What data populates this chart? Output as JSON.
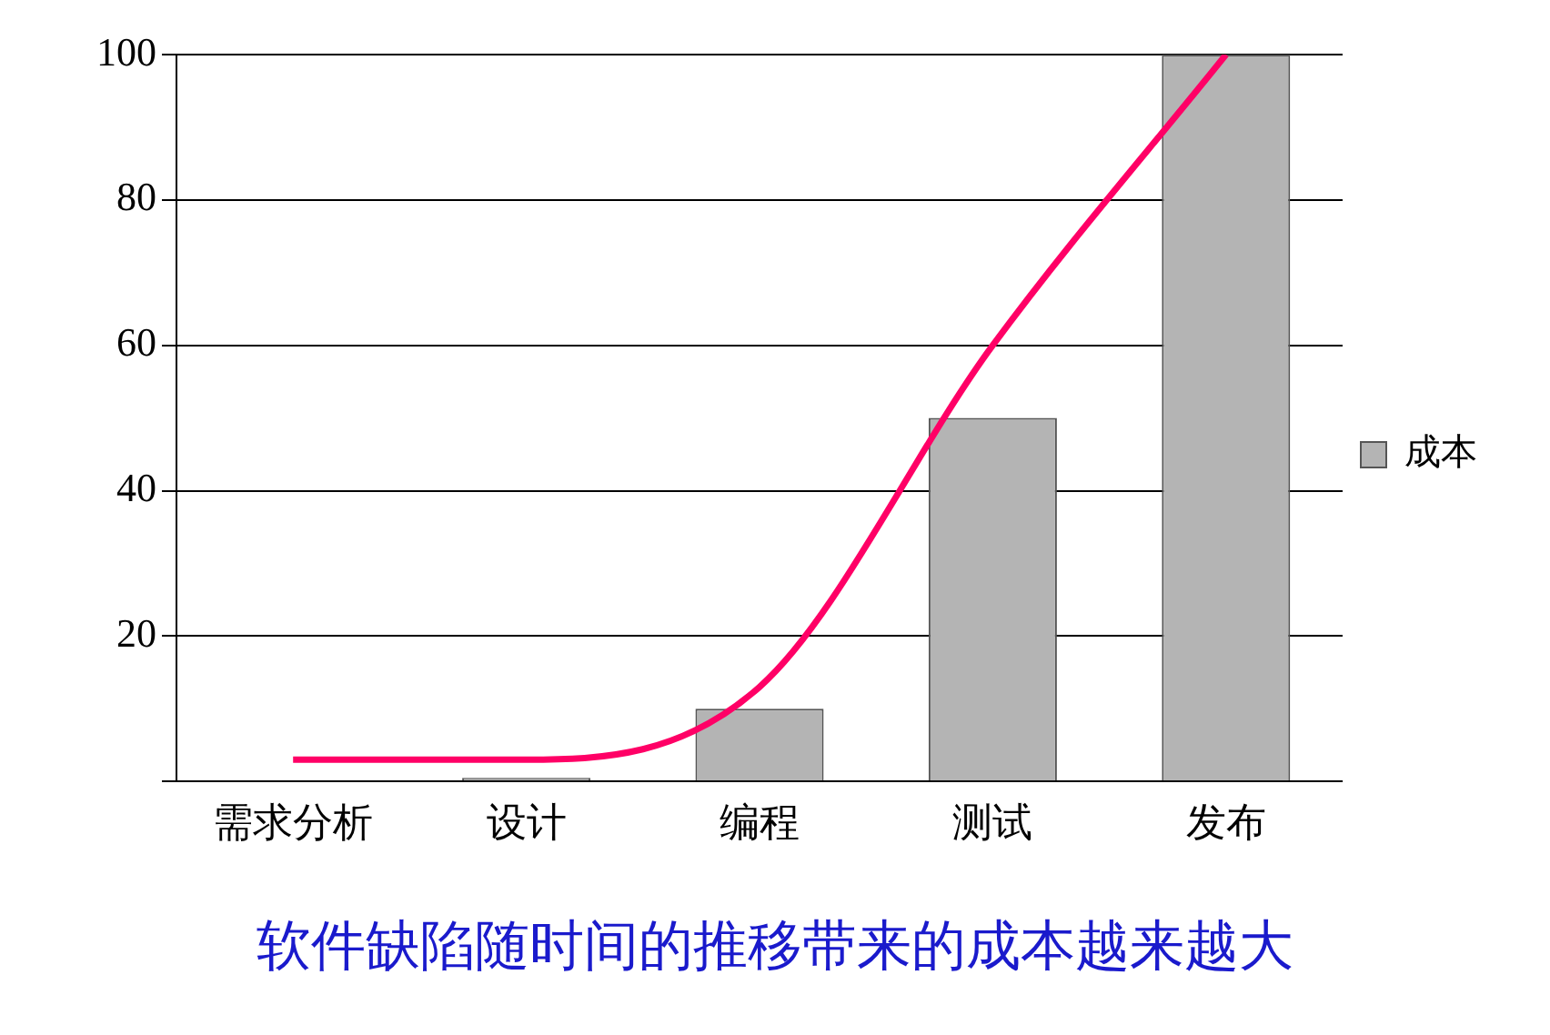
{
  "chart_data": {
    "type": "bar",
    "categories": [
      "需求分析",
      "设计",
      "编程",
      "测试",
      "发布"
    ],
    "series": [
      {
        "name": "成本",
        "color": "#b4b4b4",
        "values": [
          0,
          0.5,
          10,
          50,
          100
        ]
      },
      {
        "type": "line",
        "color": "#ff0066",
        "values": [
          3,
          3,
          13,
          60,
          100
        ]
      }
    ],
    "ylim": [
      0,
      100
    ],
    "yticks": [
      {
        "value": 0,
        "label": null
      },
      20,
      40,
      60,
      80,
      100
    ],
    "grid": "y",
    "legend": "right",
    "marker": "none",
    "annotations": [
      "软件缺陷随时间的推移带来的成本越来越大"
    ]
  }
}
